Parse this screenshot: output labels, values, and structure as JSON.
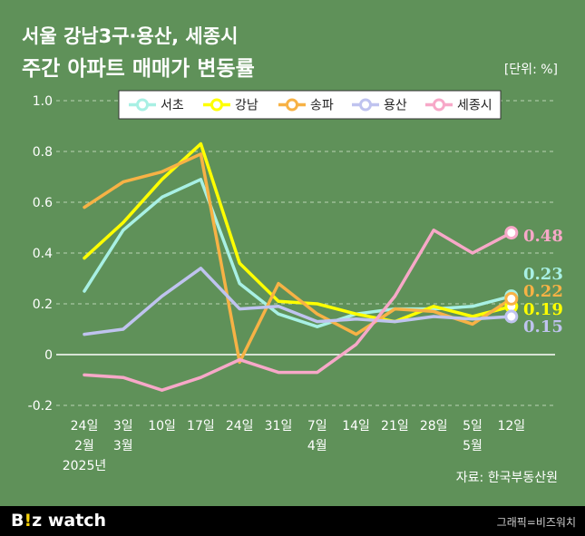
{
  "header": {
    "title_line1": "서울 강남3구·용산, 세종시",
    "title_line2": "주간 아파트 매매가 변동률",
    "unit": "[단위: %]"
  },
  "source": "자료: 한국부동산원",
  "footer": {
    "logo_b": "B",
    "logo_dot": "!",
    "logo_rest": "z watch",
    "credit": "그래픽=비즈워치"
  },
  "chart_data": {
    "type": "line",
    "categories": [
      "2025-02-24",
      "2025-03-03",
      "2025-03-10",
      "2025-03-17",
      "2025-03-24",
      "2025-03-31",
      "2025-04-07",
      "2025-04-14",
      "2025-04-21",
      "2025-04-28",
      "2025-05-05",
      "2025-05-12"
    ],
    "x_tick_labels": [
      [
        "24일",
        "2월",
        "2025년"
      ],
      [
        "3일",
        "3월"
      ],
      [
        "10일"
      ],
      [
        "17일"
      ],
      [
        "24일"
      ],
      [
        "31일"
      ],
      [
        "7일",
        "4월"
      ],
      [
        "14일"
      ],
      [
        "21일"
      ],
      [
        "28일"
      ],
      [
        "5일",
        "5월"
      ],
      [
        "12일"
      ]
    ],
    "ylim": [
      -0.2,
      1.0
    ],
    "yticks": [
      "1.0",
      "0.8",
      "0.6",
      "0.4",
      "0.2",
      "0",
      "-0.2"
    ],
    "ytick_values": [
      1.0,
      0.8,
      0.6,
      0.4,
      0.2,
      0,
      -0.2
    ],
    "grid": true,
    "legend_position": "top",
    "series": [
      {
        "name": "서초",
        "color": "#a8f0e4",
        "values": [
          0.25,
          0.49,
          0.62,
          0.69,
          0.28,
          0.16,
          0.11,
          0.16,
          0.18,
          0.18,
          0.19,
          0.23
        ],
        "end_label": "0.23"
      },
      {
        "name": "강남",
        "color": "#ffff00",
        "values": [
          0.38,
          0.52,
          0.69,
          0.83,
          0.36,
          0.21,
          0.2,
          0.16,
          0.13,
          0.19,
          0.15,
          0.19
        ],
        "end_label": "0.19"
      },
      {
        "name": "송파",
        "color": "#f7b245",
        "values": [
          0.58,
          0.68,
          0.72,
          0.79,
          -0.03,
          0.28,
          0.16,
          0.08,
          0.18,
          0.17,
          0.12,
          0.22
        ],
        "end_label": "0.22"
      },
      {
        "name": "용산",
        "color": "#bfc3ef",
        "values": [
          0.08,
          0.1,
          0.23,
          0.34,
          0.18,
          0.19,
          0.13,
          0.14,
          0.13,
          0.15,
          0.14,
          0.15
        ],
        "end_label": "0.15"
      },
      {
        "name": "세종시",
        "color": "#f7a8c8",
        "values": [
          -0.08,
          -0.09,
          -0.14,
          -0.09,
          -0.02,
          -0.07,
          -0.07,
          0.04,
          0.23,
          0.49,
          0.4,
          0.48
        ],
        "end_label": "0.48"
      }
    ]
  }
}
